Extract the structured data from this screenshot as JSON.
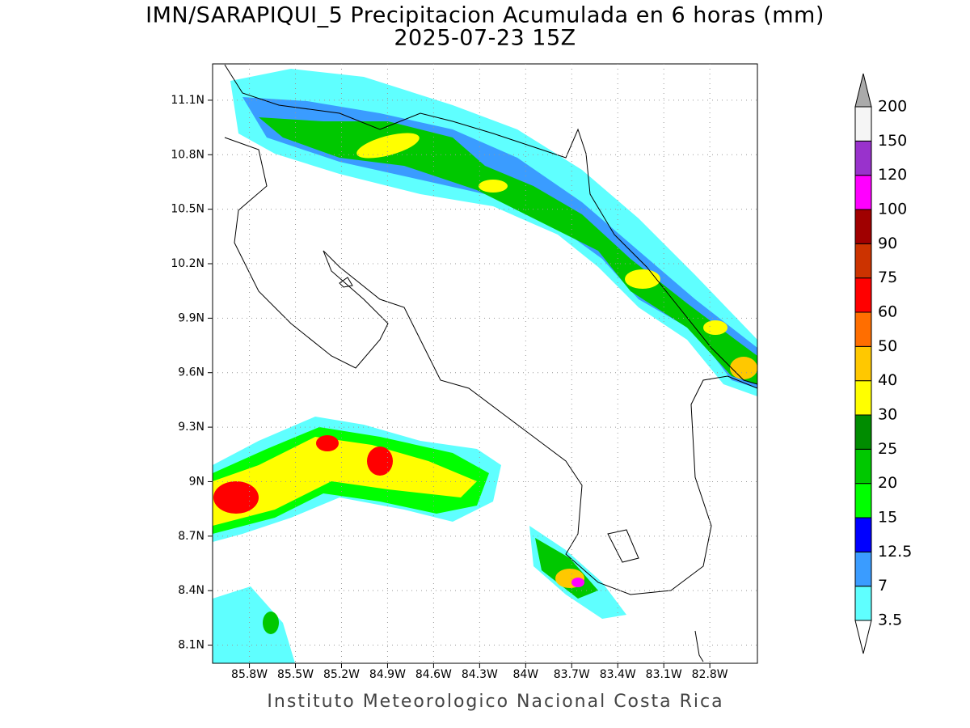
{
  "chart_data": {
    "type": "map",
    "title": "IMN/SARAPIQUI_5 Precipitacion Acumulada en 6 horas (mm)",
    "subtitle": "2025-07-23 15Z",
    "footer": "Instituto Meteorologico Nacional Costa Rica",
    "xlim": [
      -86.04,
      -82.49
    ],
    "ylim": [
      8.0,
      11.3
    ],
    "xticks": [
      {
        "value": -85.8,
        "label": "85.8W"
      },
      {
        "value": -85.5,
        "label": "85.5W"
      },
      {
        "value": -85.2,
        "label": "85.2W"
      },
      {
        "value": -84.9,
        "label": "84.9W"
      },
      {
        "value": -84.6,
        "label": "84.6W"
      },
      {
        "value": -84.3,
        "label": "84.3W"
      },
      {
        "value": -84.0,
        "label": "84W"
      },
      {
        "value": -83.7,
        "label": "83.7W"
      },
      {
        "value": -83.4,
        "label": "83.4W"
      },
      {
        "value": -83.1,
        "label": "83.1W"
      },
      {
        "value": -82.8,
        "label": "82.8W"
      }
    ],
    "yticks": [
      {
        "value": 8.1,
        "label": "8.1N"
      },
      {
        "value": 8.4,
        "label": "8.4N"
      },
      {
        "value": 8.7,
        "label": "8.7N"
      },
      {
        "value": 9.0,
        "label": "9N"
      },
      {
        "value": 9.3,
        "label": "9.3N"
      },
      {
        "value": 9.6,
        "label": "9.6N"
      },
      {
        "value": 9.9,
        "label": "9.9N"
      },
      {
        "value": 10.2,
        "label": "10.2N"
      },
      {
        "value": 10.5,
        "label": "10.5N"
      },
      {
        "value": 10.8,
        "label": "10.8N"
      },
      {
        "value": 11.1,
        "label": "11.1N"
      }
    ],
    "grid": true,
    "colorbar": {
      "levels": [
        3.5,
        7,
        12.5,
        15,
        20,
        25,
        30,
        40,
        50,
        60,
        75,
        90,
        100,
        120,
        150,
        200
      ],
      "colors": [
        "#ffffff",
        "#5fffff",
        "#3a9cff",
        "#0000ff",
        "#00ff00",
        "#00c800",
        "#008c00",
        "#ffff00",
        "#ffc800",
        "#ff6e00",
        "#ff0000",
        "#cc3300",
        "#a00000",
        "#ff00ff",
        "#9932cc",
        "#f5f5f5",
        "#aaaaaa"
      ]
    }
  }
}
